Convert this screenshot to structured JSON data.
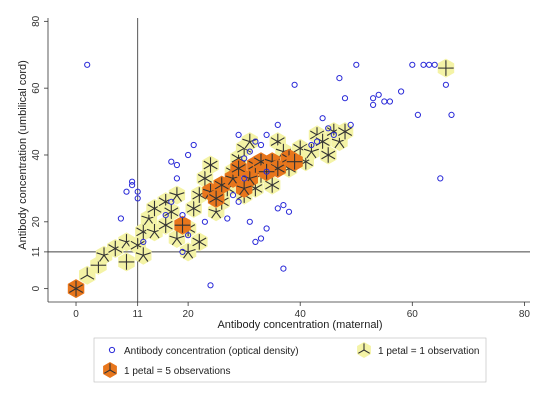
{
  "chart_data": {
    "type": "scatter",
    "xlabel": "Antibody concentration (maternal)",
    "ylabel": "Antibody concentration (umbilical cord)",
    "xlim": [
      -5,
      81
    ],
    "ylim": [
      -4,
      81
    ],
    "x_ticks": [
      0,
      11,
      20,
      40,
      60,
      80
    ],
    "y_ticks": [
      0,
      11,
      20,
      40,
      60,
      80
    ],
    "reference_lines": {
      "x": 11,
      "y": 11
    },
    "grid": false,
    "legend_position": "bottom",
    "legend": {
      "circles": "Antibody concentration (optical density)",
      "petal_one": "1 petal = 1 observation",
      "petal_five": "1 petal = 5 observations"
    },
    "colors": {
      "circle": "#2a2ad8",
      "sunflower_light_fill": "#f4f3a6",
      "sunflower_dark_fill": "#e8761c",
      "petal": "#333333",
      "axis": "#333333"
    },
    "circles": [
      [
        2,
        67
      ],
      [
        9,
        29
      ],
      [
        10,
        31
      ],
      [
        11,
        29
      ],
      [
        11,
        27
      ],
      [
        8,
        21
      ],
      [
        17,
        38
      ],
      [
        18,
        37
      ],
      [
        20,
        40
      ],
      [
        21,
        43
      ],
      [
        17,
        26
      ],
      [
        16,
        22
      ],
      [
        19,
        22
      ],
      [
        19,
        11
      ],
      [
        20,
        16
      ],
      [
        23,
        20
      ],
      [
        24,
        1
      ],
      [
        27,
        21
      ],
      [
        29,
        46
      ],
      [
        30,
        39
      ],
      [
        31,
        41
      ],
      [
        32,
        44
      ],
      [
        33,
        43
      ],
      [
        34,
        35
      ],
      [
        28,
        28
      ],
      [
        29,
        26
      ],
      [
        31,
        20
      ],
      [
        32,
        14
      ],
      [
        33,
        15
      ],
      [
        34,
        18
      ],
      [
        34,
        46
      ],
      [
        36,
        49
      ],
      [
        36,
        24
      ],
      [
        37,
        25
      ],
      [
        38,
        23
      ],
      [
        39,
        61
      ],
      [
        37,
        6
      ],
      [
        44,
        51
      ],
      [
        45,
        48
      ],
      [
        47,
        63
      ],
      [
        48,
        57
      ],
      [
        49,
        49
      ],
      [
        50,
        67
      ],
      [
        53,
        57
      ],
      [
        53,
        55
      ],
      [
        54,
        58
      ],
      [
        55,
        56
      ],
      [
        56,
        56
      ],
      [
        58,
        59
      ],
      [
        60,
        67
      ],
      [
        61,
        52
      ],
      [
        62,
        67
      ],
      [
        63,
        67
      ],
      [
        64,
        67
      ],
      [
        65,
        33
      ],
      [
        66,
        61
      ],
      [
        67,
        52
      ],
      [
        10,
        32
      ],
      [
        12,
        14
      ],
      [
        18,
        33
      ],
      [
        42,
        43
      ],
      [
        43,
        44
      ],
      [
        46,
        46
      ],
      [
        30,
        33
      ]
    ],
    "sunflowers_light": [
      [
        2,
        4,
        3
      ],
      [
        4,
        7,
        4
      ],
      [
        5,
        10,
        5
      ],
      [
        7,
        12,
        6
      ],
      [
        9,
        14,
        5
      ],
      [
        11,
        13,
        6
      ],
      [
        12,
        17,
        6
      ],
      [
        13,
        21,
        5
      ],
      [
        14,
        24,
        6
      ],
      [
        16,
        26,
        6
      ],
      [
        17,
        23,
        6
      ],
      [
        18,
        28,
        5
      ],
      [
        14,
        17,
        5
      ],
      [
        16,
        19,
        6
      ],
      [
        18,
        15,
        5
      ],
      [
        20,
        18,
        6
      ],
      [
        21,
        24,
        6
      ],
      [
        22,
        28,
        6
      ],
      [
        23,
        33,
        6
      ],
      [
        24,
        37,
        6
      ],
      [
        25,
        23,
        5
      ],
      [
        26,
        26,
        6
      ],
      [
        27,
        30,
        6
      ],
      [
        28,
        35,
        6
      ],
      [
        29,
        39,
        6
      ],
      [
        30,
        42,
        6
      ],
      [
        31,
        44,
        5
      ],
      [
        32,
        30,
        6
      ],
      [
        33,
        34,
        6
      ],
      [
        35,
        31,
        6
      ],
      [
        36,
        44,
        6
      ],
      [
        37,
        41,
        5
      ],
      [
        38,
        36,
        6
      ],
      [
        40,
        42,
        6
      ],
      [
        41,
        38,
        6
      ],
      [
        42,
        41,
        5
      ],
      [
        43,
        46,
        6
      ],
      [
        44,
        44,
        6
      ],
      [
        46,
        47,
        6
      ],
      [
        47,
        44,
        5
      ],
      [
        48,
        47,
        6
      ],
      [
        45,
        40,
        6
      ],
      [
        20,
        11,
        5
      ],
      [
        22,
        14,
        6
      ],
      [
        30,
        28,
        6
      ],
      [
        12,
        10,
        5
      ],
      [
        66,
        66,
        4
      ],
      [
        9,
        8,
        4
      ]
    ],
    "sunflowers_dark": [
      [
        0,
        0,
        6
      ],
      [
        19,
        19,
        4
      ],
      [
        24,
        29,
        5
      ],
      [
        26,
        31,
        6
      ],
      [
        28,
        33,
        5
      ],
      [
        29,
        36,
        6
      ],
      [
        31,
        33,
        5
      ],
      [
        32,
        37,
        6
      ],
      [
        33,
        38,
        6
      ],
      [
        35,
        38,
        5
      ],
      [
        36,
        36,
        6
      ],
      [
        38,
        39,
        6
      ],
      [
        39,
        38,
        4
      ],
      [
        25,
        27,
        6
      ],
      [
        34,
        35,
        4
      ],
      [
        30,
        30,
        5
      ]
    ]
  }
}
